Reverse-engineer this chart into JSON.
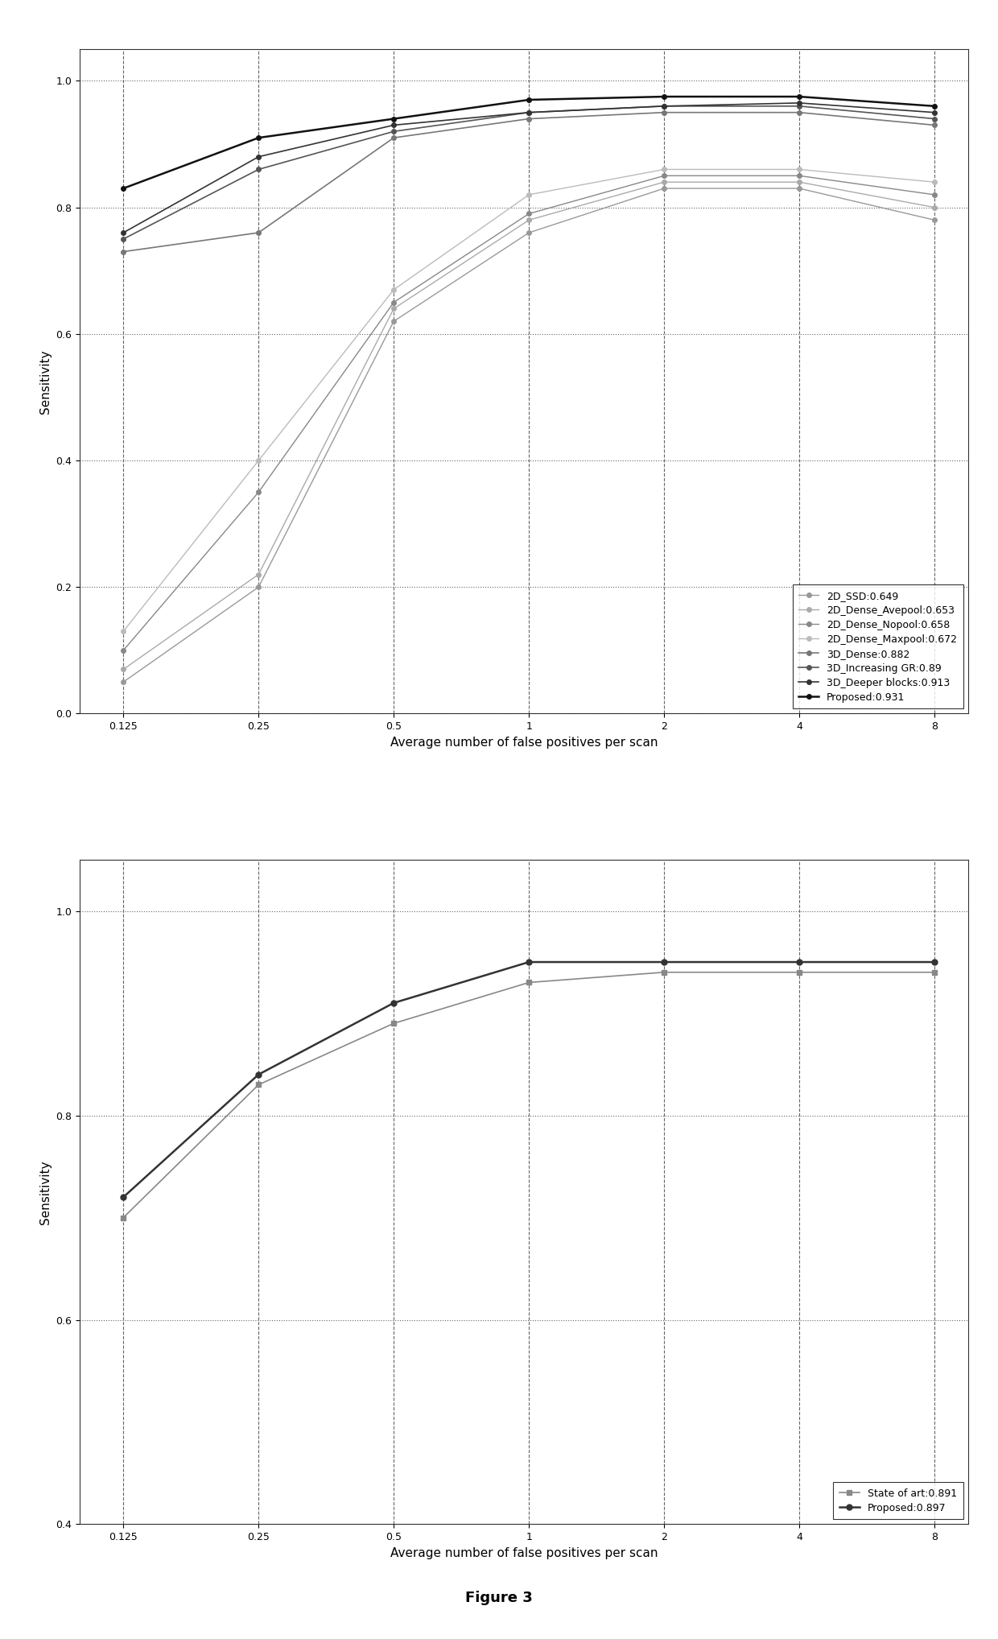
{
  "plot1": {
    "x": [
      0.125,
      0.25,
      0.5,
      1,
      2,
      4,
      8
    ],
    "series": [
      {
        "label": "2D_SSD:0.649",
        "y": [
          0.05,
          0.2,
          0.62,
          0.76,
          0.83,
          0.83,
          0.78
        ],
        "color": "#999999",
        "linestyle": "-",
        "marker": "o",
        "markersize": 4,
        "linewidth": 1.0
      },
      {
        "label": "2D_Dense_Avepool:0.653",
        "y": [
          0.07,
          0.22,
          0.64,
          0.78,
          0.84,
          0.84,
          0.8
        ],
        "color": "#aaaaaa",
        "linestyle": "-",
        "marker": "o",
        "markersize": 4,
        "linewidth": 1.0
      },
      {
        "label": "2D_Dense_Nopool:0.658",
        "y": [
          0.1,
          0.35,
          0.65,
          0.79,
          0.85,
          0.85,
          0.82
        ],
        "color": "#888888",
        "linestyle": "-",
        "marker": "o",
        "markersize": 4,
        "linewidth": 1.0
      },
      {
        "label": "2D_Dense_Maxpool:0.672",
        "y": [
          0.13,
          0.4,
          0.67,
          0.82,
          0.86,
          0.86,
          0.84
        ],
        "color": "#bbbbbb",
        "linestyle": "-",
        "marker": "o",
        "markersize": 4,
        "linewidth": 1.0
      },
      {
        "label": "3D_Dense:0.882",
        "y": [
          0.73,
          0.76,
          0.91,
          0.94,
          0.95,
          0.95,
          0.93
        ],
        "color": "#777777",
        "linestyle": "-",
        "marker": "o",
        "markersize": 4,
        "linewidth": 1.2
      },
      {
        "label": "3D_Increasing GR:0.89",
        "y": [
          0.75,
          0.86,
          0.92,
          0.95,
          0.96,
          0.96,
          0.94
        ],
        "color": "#555555",
        "linestyle": "-",
        "marker": "o",
        "markersize": 4,
        "linewidth": 1.2
      },
      {
        "label": "3D_Deeper blocks:0.913",
        "y": [
          0.76,
          0.88,
          0.93,
          0.95,
          0.96,
          0.965,
          0.95
        ],
        "color": "#333333",
        "linestyle": "-",
        "marker": "o",
        "markersize": 4,
        "linewidth": 1.2
      },
      {
        "label": "Proposed:0.931",
        "y": [
          0.83,
          0.91,
          0.94,
          0.97,
          0.975,
          0.975,
          0.96
        ],
        "color": "#111111",
        "linestyle": "-",
        "marker": "o",
        "markersize": 4,
        "linewidth": 1.8
      }
    ],
    "xlabel": "Average number of false positives per scan",
    "ylabel": "Sensitivity",
    "ylim": [
      0.0,
      1.05
    ],
    "yticks": [
      0.0,
      0.2,
      0.4,
      0.6,
      0.8,
      1.0
    ],
    "xtick_labels": [
      "0.125",
      "0.25",
      "0.5",
      "1",
      "2",
      "4",
      "8"
    ],
    "legend_loc": "lower right"
  },
  "plot2": {
    "x": [
      0.125,
      0.25,
      0.5,
      1,
      2,
      4,
      8
    ],
    "series": [
      {
        "label": "State of art:0.891",
        "y": [
          0.7,
          0.83,
          0.89,
          0.93,
          0.94,
          0.94,
          0.94
        ],
        "color": "#888888",
        "linestyle": "-",
        "marker": "s",
        "markersize": 5,
        "linewidth": 1.2
      },
      {
        "label": "Proposed:0.897",
        "y": [
          0.72,
          0.84,
          0.91,
          0.95,
          0.95,
          0.95,
          0.95
        ],
        "color": "#333333",
        "linestyle": "-",
        "marker": "o",
        "markersize": 5,
        "linewidth": 1.8
      }
    ],
    "xlabel": "Average number of false positives per scan",
    "ylabel": "Sensitivity",
    "ylim": [
      0.4,
      1.05
    ],
    "yticks": [
      0.4,
      0.6,
      0.8,
      1.0
    ],
    "xtick_labels": [
      "0.125",
      "0.25",
      "0.5",
      "1",
      "2",
      "4",
      "8"
    ],
    "legend_loc": "lower right"
  },
  "figure_label": "Figure 3",
  "background_color": "#ffffff",
  "hgrid_color": "#666666",
  "hgrid_linestyle": ":",
  "vgrid_color": "#666666",
  "vgrid_linestyle": "--",
  "legend_fontsize": 9,
  "axis_label_fontsize": 11,
  "tick_fontsize": 9
}
